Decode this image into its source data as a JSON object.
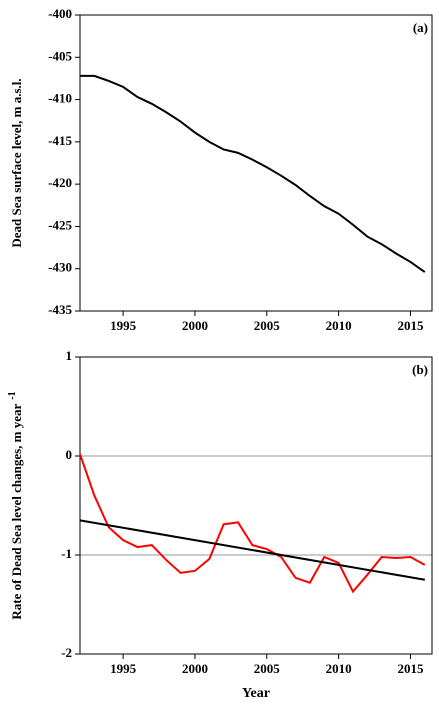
{
  "chart_data": [
    {
      "type": "line",
      "panel_label": "(a)",
      "ylabel": "Dead Sea surface level,  m a.s.l.",
      "x": [
        1992,
        1993,
        1994,
        1995,
        1996,
        1997,
        1998,
        1999,
        2000,
        2001,
        2002,
        2003,
        2004,
        2005,
        2006,
        2007,
        2008,
        2009,
        2010,
        2011,
        2012,
        2013,
        2014,
        2015,
        2016
      ],
      "series": [
        {
          "color": "#000000",
          "values": [
            -407.2,
            -407.2,
            -407.8,
            -408.5,
            -409.7,
            -410.5,
            -411.5,
            -412.6,
            -413.9,
            -415.0,
            -415.9,
            -416.3,
            -417.1,
            -418.0,
            -419.0,
            -420.1,
            -421.4,
            -422.6,
            -423.5,
            -424.8,
            -426.2,
            -427.1,
            -428.2,
            -429.2,
            -430.4
          ]
        }
      ],
      "xlim": [
        1992,
        2016.5
      ],
      "xticks": [
        1995,
        2000,
        2005,
        2010,
        2015
      ],
      "ylim": [
        -435,
        -400
      ],
      "yticks": [
        -435,
        -430,
        -425,
        -420,
        -415,
        -410,
        -405,
        -400
      ]
    },
    {
      "type": "line",
      "panel_label": "(b)",
      "ylabel": "Rate of Dead Sea level changes,  m year",
      "ylabel_superscript": "-1",
      "xlabel": "Year",
      "x": [
        1992,
        1993,
        1994,
        1995,
        1996,
        1997,
        1998,
        1999,
        2000,
        2001,
        2002,
        2003,
        2004,
        2005,
        2006,
        2007,
        2008,
        2009,
        2010,
        2011,
        2012,
        2013,
        2014,
        2015,
        2016
      ],
      "series": [
        {
          "color": "#ff0000",
          "values": [
            0.02,
            -0.4,
            -0.72,
            -0.85,
            -0.92,
            -0.9,
            -1.05,
            -1.18,
            -1.16,
            -1.04,
            -0.69,
            -0.67,
            -0.9,
            -0.94,
            -1.02,
            -1.23,
            -1.28,
            -1.02,
            -1.08,
            -1.37,
            -1.2,
            -1.02,
            -1.03,
            -1.02,
            -1.1
          ]
        },
        {
          "color": "#000000",
          "x": [
            1992,
            2016
          ],
          "values": [
            -0.65,
            -1.25
          ]
        }
      ],
      "hlines": [
        0,
        -1
      ],
      "xlim": [
        1992,
        2016.5
      ],
      "xticks": [
        1995,
        2000,
        2005,
        2010,
        2015
      ],
      "ylim": [
        -2,
        1
      ],
      "yticks": [
        -2,
        -1,
        0,
        1
      ]
    }
  ]
}
